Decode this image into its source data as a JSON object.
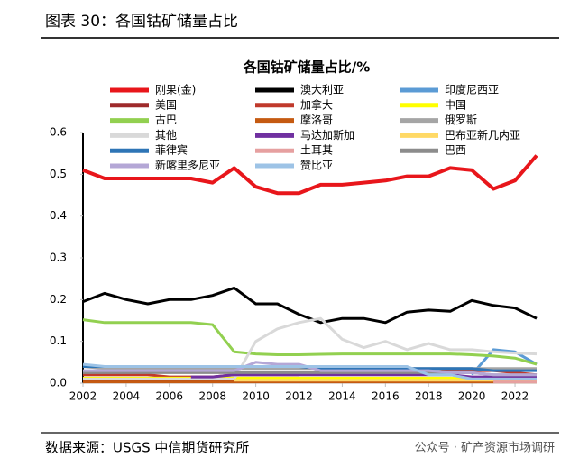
{
  "header": {
    "title": "图表 30：各国钴矿储量占比"
  },
  "chart_data": {
    "type": "line",
    "title": "各国钴矿储量占比/%",
    "x": [
      2002,
      2003,
      2004,
      2005,
      2006,
      2007,
      2008,
      2009,
      2010,
      2011,
      2012,
      2013,
      2014,
      2015,
      2016,
      2017,
      2018,
      2019,
      2020,
      2021,
      2022,
      2023
    ],
    "xlim": [
      2002,
      2023
    ],
    "xticks": [
      2002,
      2004,
      2006,
      2008,
      2010,
      2012,
      2014,
      2016,
      2018,
      2020,
      2022
    ],
    "ylim": [
      0,
      0.6
    ],
    "yticks": [
      {
        "value": 0,
        "label": "0.0"
      },
      0.1,
      0.2,
      0.3,
      0.4,
      0.5,
      0.6
    ],
    "grid": false,
    "series": [
      {
        "name": "刚果(金)",
        "color": "#e8161b",
        "values": [
          0.51,
          0.49,
          0.49,
          0.49,
          0.49,
          0.49,
          0.48,
          0.515,
          0.47,
          0.455,
          0.455,
          0.475,
          0.475,
          0.48,
          0.485,
          0.495,
          0.495,
          0.515,
          0.51,
          0.465,
          0.485,
          0.545
        ]
      },
      {
        "name": "澳大利亚",
        "color": "#000000",
        "values": [
          0.195,
          0.215,
          0.2,
          0.19,
          0.2,
          0.2,
          0.21,
          0.228,
          0.19,
          0.19,
          0.165,
          0.145,
          0.155,
          0.155,
          0.145,
          0.17,
          0.175,
          0.172,
          0.198,
          0.186,
          0.18,
          0.155
        ]
      },
      {
        "name": "印度尼西亚",
        "color": "#5b9bd5",
        "values": [
          null,
          null,
          null,
          null,
          null,
          null,
          null,
          null,
          null,
          null,
          null,
          null,
          null,
          null,
          null,
          null,
          null,
          null,
          0.02,
          0.08,
          0.075,
          0.045
        ]
      },
      {
        "name": "美国",
        "color": "#9e2a2b",
        "values": [
          0.005,
          0.005,
          0.005,
          0.005,
          0.005,
          0.005,
          0.005,
          0.005,
          0.005,
          0.005,
          0.005,
          0.005,
          0.005,
          0.005,
          0.005,
          0.005,
          0.005,
          0.005,
          0.005,
          0.007,
          0.008,
          0.008
        ]
      },
      {
        "name": "加拿大",
        "color": "#c0392b",
        "values": [
          0.02,
          0.02,
          0.02,
          0.02,
          0.015,
          0.015,
          0.015,
          0.02,
          0.02,
          0.02,
          0.02,
          0.03,
          0.03,
          0.03,
          0.03,
          0.025,
          0.025,
          0.03,
          0.03,
          0.03,
          0.025,
          0.02
        ]
      },
      {
        "name": "中国",
        "color": "#ffff00",
        "values": [
          0.012,
          0.012,
          0.012,
          0.012,
          0.012,
          0.012,
          0.012,
          0.012,
          0.012,
          0.012,
          0.012,
          0.012,
          0.012,
          0.012,
          0.012,
          0.012,
          0.012,
          0.012,
          0.012,
          0.012,
          0.012,
          0.012
        ]
      },
      {
        "name": "古巴",
        "color": "#92d050",
        "values": [
          0.152,
          0.145,
          0.145,
          0.145,
          0.145,
          0.145,
          0.14,
          0.075,
          0.07,
          0.068,
          0.068,
          0.069,
          0.07,
          0.07,
          0.07,
          0.07,
          0.07,
          0.07,
          0.068,
          0.065,
          0.06,
          0.045
        ]
      },
      {
        "name": "摩洛哥",
        "color": "#c55a11",
        "values": [
          0.003,
          0.003,
          0.003,
          0.003,
          0.003,
          0.003,
          0.003,
          0.003,
          0.003,
          0.003,
          0.003,
          0.003,
          0.003,
          0.003,
          0.003,
          0.003,
          0.003,
          0.003,
          0.003,
          0.003,
          0.003,
          0.003
        ]
      },
      {
        "name": "俄罗斯",
        "color": "#a5a5a5",
        "values": [
          0.04,
          0.035,
          0.035,
          0.035,
          0.035,
          0.035,
          0.035,
          0.035,
          0.035,
          0.035,
          0.035,
          0.035,
          0.035,
          0.035,
          0.035,
          0.035,
          0.035,
          0.035,
          0.035,
          0.035,
          0.035,
          0.035
        ]
      },
      {
        "name": "其他",
        "color": "#d9d9d9",
        "values": [
          0.01,
          0.01,
          0.01,
          0.01,
          0.01,
          0.01,
          0.01,
          0.01,
          0.1,
          0.13,
          0.145,
          0.155,
          0.105,
          0.085,
          0.1,
          0.08,
          0.095,
          0.08,
          0.08,
          0.075,
          0.072,
          0.07
        ]
      },
      {
        "name": "马达加斯加",
        "color": "#7030a0",
        "values": [
          null,
          null,
          null,
          null,
          null,
          0.015,
          0.015,
          0.02,
          0.02,
          0.02,
          0.02,
          0.02,
          0.02,
          0.02,
          0.02,
          0.02,
          0.02,
          0.02,
          0.015,
          0.015,
          0.015,
          0.015
        ]
      },
      {
        "name": "巴布亚新几内亚",
        "color": "#ffd966",
        "values": [
          null,
          null,
          null,
          null,
          null,
          null,
          null,
          0.007,
          0.007,
          0.007,
          0.007,
          0.007,
          0.007,
          0.007,
          0.007,
          0.007,
          0.007,
          0.007,
          0.007,
          0.007,
          0.007,
          0.007
        ]
      },
      {
        "name": "菲律宾",
        "color": "#2e75b6",
        "values": [
          0.04,
          0.04,
          0.04,
          0.04,
          0.04,
          0.04,
          0.04,
          0.04,
          0.04,
          0.04,
          0.04,
          0.035,
          0.035,
          0.035,
          0.035,
          0.035,
          0.035,
          0.035,
          0.035,
          0.03,
          0.03,
          0.03
        ]
      },
      {
        "name": "土耳其",
        "color": "#e6a0a0",
        "values": [
          null,
          null,
          null,
          null,
          null,
          null,
          null,
          null,
          null,
          null,
          null,
          null,
          null,
          null,
          null,
          null,
          null,
          null,
          null,
          0.003,
          0.003,
          0.003
        ]
      },
      {
        "name": "巴西",
        "color": "#8c8c8c",
        "values": [
          0.025,
          0.025,
          0.025,
          0.025,
          0.025,
          0.025,
          0.025,
          0.025,
          0.025,
          0.025,
          0.025,
          0.025,
          0.025,
          0.025,
          0.025,
          0.025,
          0.025,
          0.025,
          0.025,
          0.02,
          0.02,
          0.02
        ]
      },
      {
        "name": "新喀里多尼亚",
        "color": "#b4a7d6",
        "values": [
          0.03,
          0.03,
          0.03,
          0.03,
          0.03,
          0.03,
          0.03,
          0.03,
          0.05,
          0.045,
          0.045,
          0.03,
          0.03,
          0.03,
          0.03,
          0.03,
          0.03,
          0.025,
          0.025,
          0.02,
          0.02,
          0.02
        ]
      },
      {
        "name": "赞比亚",
        "color": "#9dc3e6",
        "values": [
          0.045,
          0.04,
          0.04,
          0.04,
          0.04,
          0.04,
          0.04,
          0.04,
          0.04,
          0.04,
          0.04,
          0.04,
          0.04,
          0.04,
          0.04,
          0.04,
          0.02,
          0.02,
          0.01,
          0.01,
          0.01,
          0.01
        ]
      }
    ]
  },
  "footer": {
    "source": "数据来源：USGS 中信期货研究所",
    "watermark": "公众号 · 矿产资源市场调研"
  }
}
